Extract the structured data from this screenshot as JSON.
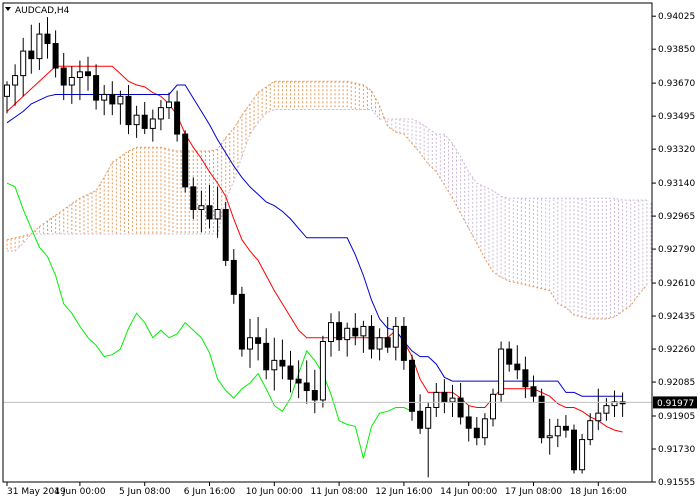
{
  "chart_data": {
    "type": "candlestick",
    "symbol_label": "AUDCAD,H4",
    "current_price": "0.91977",
    "ylim": [
      0.91555,
      0.94095
    ],
    "y_ticks": [
      "0.94025",
      "0.93850",
      "0.93670",
      "0.93495",
      "0.93320",
      "0.93140",
      "0.92965",
      "0.92790",
      "0.92610",
      "0.92435",
      "0.92260",
      "0.92085",
      "0.91905",
      "0.91730",
      "0.91555"
    ],
    "x_ticks": [
      {
        "label": "31 May 2019",
        "index": 0
      },
      {
        "label": "4 Jun 00:00",
        "index": 9
      },
      {
        "label": "5 Jun 08:00",
        "index": 17
      },
      {
        "label": "6 Jun 16:00",
        "index": 25
      },
      {
        "label": "10 Jun 00:00",
        "index": 33
      },
      {
        "label": "11 Jun 08:00",
        "index": 41
      },
      {
        "label": "12 Jun 16:00",
        "index": 49
      },
      {
        "label": "14 Jun 00:00",
        "index": 57
      },
      {
        "label": "17 Jun 08:00",
        "index": 65
      },
      {
        "label": "18 Jun 16:00",
        "index": 73
      }
    ],
    "candles": [
      [
        0.936,
        0.9368,
        0.9351,
        0.9366
      ],
      [
        0.9366,
        0.9377,
        0.9355,
        0.9371
      ],
      [
        0.9371,
        0.9391,
        0.936,
        0.9384
      ],
      [
        0.9384,
        0.9398,
        0.9372,
        0.938
      ],
      [
        0.938,
        0.9399,
        0.9374,
        0.9393
      ],
      [
        0.9393,
        0.9402,
        0.938,
        0.9388
      ],
      [
        0.9388,
        0.9395,
        0.937,
        0.9375
      ],
      [
        0.9375,
        0.9383,
        0.9358,
        0.9366
      ],
      [
        0.9366,
        0.9376,
        0.9356,
        0.937
      ],
      [
        0.937,
        0.9379,
        0.9358,
        0.9373
      ],
      [
        0.9373,
        0.9381,
        0.9363,
        0.9371
      ],
      [
        0.9371,
        0.9377,
        0.9353,
        0.9358
      ],
      [
        0.9358,
        0.9366,
        0.935,
        0.9361
      ],
      [
        0.9361,
        0.9368,
        0.935,
        0.9356
      ],
      [
        0.9356,
        0.9363,
        0.9345,
        0.936
      ],
      [
        0.936,
        0.9366,
        0.934,
        0.9345
      ],
      [
        0.9345,
        0.9355,
        0.9338,
        0.935
      ],
      [
        0.935,
        0.9357,
        0.934,
        0.9343
      ],
      [
        0.9343,
        0.9353,
        0.9336,
        0.9348
      ],
      [
        0.9348,
        0.9358,
        0.9342,
        0.9354
      ],
      [
        0.9354,
        0.9362,
        0.9348,
        0.9357
      ],
      [
        0.9357,
        0.9363,
        0.9336,
        0.934
      ],
      [
        0.934,
        0.9342,
        0.9309,
        0.9312
      ],
      [
        0.9312,
        0.9317,
        0.9295,
        0.93
      ],
      [
        0.93,
        0.931,
        0.9288,
        0.9302
      ],
      [
        0.9302,
        0.9313,
        0.929,
        0.9295
      ],
      [
        0.9295,
        0.9312,
        0.9285,
        0.93
      ],
      [
        0.93,
        0.9304,
        0.927,
        0.9273
      ],
      [
        0.9273,
        0.9279,
        0.925,
        0.9255
      ],
      [
        0.9255,
        0.9259,
        0.9222,
        0.9226
      ],
      [
        0.9226,
        0.9242,
        0.9216,
        0.9232
      ],
      [
        0.9232,
        0.9243,
        0.922,
        0.9229
      ],
      [
        0.9229,
        0.9237,
        0.921,
        0.9215
      ],
      [
        0.9215,
        0.9232,
        0.9204,
        0.922
      ],
      [
        0.922,
        0.9231,
        0.921,
        0.9217
      ],
      [
        0.9217,
        0.9225,
        0.9203,
        0.921
      ],
      [
        0.921,
        0.922,
        0.92,
        0.9208
      ],
      [
        0.9208,
        0.922,
        0.9197,
        0.9204
      ],
      [
        0.9204,
        0.9215,
        0.9192,
        0.9199
      ],
      [
        0.9199,
        0.9233,
        0.9195,
        0.923
      ],
      [
        0.923,
        0.9245,
        0.9222,
        0.924
      ],
      [
        0.924,
        0.9246,
        0.9225,
        0.9231
      ],
      [
        0.9231,
        0.924,
        0.9222,
        0.9237
      ],
      [
        0.9237,
        0.9245,
        0.9228,
        0.9233
      ],
      [
        0.9233,
        0.9241,
        0.9224,
        0.9238
      ],
      [
        0.9238,
        0.9244,
        0.9221,
        0.9226
      ],
      [
        0.9226,
        0.9237,
        0.922,
        0.9232
      ],
      [
        0.9232,
        0.9243,
        0.9224,
        0.9227
      ],
      [
        0.9227,
        0.9243,
        0.922,
        0.9238
      ],
      [
        0.9238,
        0.9243,
        0.9215,
        0.922
      ],
      [
        0.922,
        0.9223,
        0.9188,
        0.9193
      ],
      [
        0.9193,
        0.9202,
        0.9181,
        0.9184
      ],
      [
        0.9184,
        0.9198,
        0.9158,
        0.9195
      ],
      [
        0.9195,
        0.9208,
        0.919,
        0.9203
      ],
      [
        0.9203,
        0.921,
        0.9192,
        0.9198
      ],
      [
        0.9198,
        0.9207,
        0.919,
        0.92
      ],
      [
        0.92,
        0.9208,
        0.9186,
        0.919
      ],
      [
        0.919,
        0.9196,
        0.9177,
        0.9184
      ],
      [
        0.9184,
        0.919,
        0.9175,
        0.9179
      ],
      [
        0.9179,
        0.9192,
        0.9175,
        0.9189
      ],
      [
        0.9189,
        0.9205,
        0.9185,
        0.9202
      ],
      [
        0.9202,
        0.923,
        0.9198,
        0.9226
      ],
      [
        0.9226,
        0.923,
        0.9214,
        0.9218
      ],
      [
        0.9218,
        0.9228,
        0.921,
        0.9215
      ],
      [
        0.9215,
        0.9222,
        0.92,
        0.9206
      ],
      [
        0.9206,
        0.9212,
        0.9198,
        0.9201
      ],
      [
        0.9201,
        0.9205,
        0.9176,
        0.9179
      ],
      [
        0.9179,
        0.9189,
        0.917,
        0.918
      ],
      [
        0.918,
        0.9189,
        0.9174,
        0.9185
      ],
      [
        0.9185,
        0.9191,
        0.9179,
        0.9183
      ],
      [
        0.9183,
        0.9186,
        0.916,
        0.9162
      ],
      [
        0.9162,
        0.9181,
        0.916,
        0.9178
      ],
      [
        0.9178,
        0.9192,
        0.9175,
        0.9188
      ],
      [
        0.9188,
        0.9205,
        0.9183,
        0.9192
      ],
      [
        0.9192,
        0.92,
        0.9188,
        0.9196
      ],
      [
        0.9196,
        0.9204,
        0.919,
        0.9198
      ],
      [
        0.9198,
        0.9203,
        0.919,
        0.9197
      ]
    ],
    "indicators": [
      {
        "name": "tenkan",
        "color": "#ff0000",
        "values": [
          0.9352,
          0.9356,
          0.936,
          0.9364,
          0.9368,
          0.9372,
          0.9376,
          0.9376,
          0.9376,
          0.9376,
          0.9376,
          0.9376,
          0.9376,
          0.9376,
          0.9372,
          0.9368,
          0.9366,
          0.9365,
          0.9362,
          0.936,
          0.9356,
          0.935,
          0.934,
          0.9333,
          0.9327,
          0.932,
          0.9314,
          0.9307,
          0.9295,
          0.9284,
          0.9278,
          0.9273,
          0.9265,
          0.9257,
          0.925,
          0.9243,
          0.9236,
          0.9232,
          0.9232,
          0.9232,
          0.9232,
          0.9232,
          0.9232,
          0.9232,
          0.9232,
          0.9232,
          0.9232,
          0.9232,
          0.9236,
          0.923,
          0.9222,
          0.921,
          0.9203,
          0.9203,
          0.9203,
          0.9203,
          0.92,
          0.9196,
          0.9195,
          0.9195,
          0.92,
          0.9205,
          0.9205,
          0.9205,
          0.9205,
          0.9205,
          0.9203,
          0.9201,
          0.9197,
          0.9195,
          0.9195,
          0.9193,
          0.919,
          0.9188,
          0.9185,
          0.9183,
          0.9182
        ]
      },
      {
        "name": "kijun",
        "color": "#0000cc",
        "values": [
          0.9346,
          0.9349,
          0.9352,
          0.9356,
          0.9358,
          0.936,
          0.9361,
          0.9361,
          0.9361,
          0.9361,
          0.9361,
          0.9361,
          0.9361,
          0.9361,
          0.9361,
          0.9361,
          0.9361,
          0.9361,
          0.9361,
          0.9361,
          0.9361,
          0.9366,
          0.9366,
          0.9359,
          0.9352,
          0.9345,
          0.9337,
          0.933,
          0.9323,
          0.9317,
          0.9312,
          0.9308,
          0.9304,
          0.9302,
          0.9299,
          0.9295,
          0.929,
          0.9285,
          0.9285,
          0.9285,
          0.9285,
          0.9285,
          0.9285,
          0.9276,
          0.9265,
          0.9252,
          0.9242,
          0.9237,
          0.9236,
          0.923,
          0.9225,
          0.9222,
          0.9222,
          0.9218,
          0.9211,
          0.9209,
          0.9209,
          0.9209,
          0.9209,
          0.9209,
          0.9209,
          0.9209,
          0.9209,
          0.9209,
          0.9209,
          0.9209,
          0.9209,
          0.9209,
          0.9209,
          0.9203,
          0.9203,
          0.9201,
          0.9201,
          0.9201,
          0.9201,
          0.9201,
          0.9201
        ]
      },
      {
        "name": "chikou",
        "color": "#00ee00",
        "values": [
          0.9314,
          0.9312,
          0.93,
          0.929,
          0.928,
          0.9275,
          0.9265,
          0.925,
          0.9245,
          0.9238,
          0.9232,
          0.9228,
          0.9222,
          0.9223,
          0.9226,
          0.9237,
          0.9245,
          0.924,
          0.9232,
          0.9236,
          0.9232,
          0.9234,
          0.924,
          0.9236,
          0.9232,
          0.9224,
          0.921,
          0.9204,
          0.92,
          0.9205,
          0.9208,
          0.9213,
          0.9205,
          0.9196,
          0.9193,
          0.92,
          0.9213,
          0.9225,
          0.922,
          0.9213,
          0.9202,
          0.9188,
          0.9186,
          0.9185,
          0.9168,
          0.9185,
          0.9192,
          0.9193,
          0.9195,
          0.9195,
          0.9193
        ]
      }
    ],
    "cloud": {
      "span_a": [
        0.9284,
        0.9285,
        0.9286,
        0.9287,
        0.9291,
        0.9294,
        0.9297,
        0.93,
        0.9303,
        0.9306,
        0.9308,
        0.931,
        0.9317,
        0.9325,
        0.9328,
        0.9331,
        0.9333,
        0.9333,
        0.9333,
        0.9333,
        0.9332,
        0.9331,
        0.9331,
        0.9331,
        0.9331,
        0.9331,
        0.9332,
        0.9338,
        0.9343,
        0.935,
        0.9356,
        0.9362,
        0.9365,
        0.9368,
        0.9368,
        0.9368,
        0.9368,
        0.9368,
        0.9368,
        0.9368,
        0.9368,
        0.9368,
        0.9368,
        0.9367,
        0.9366,
        0.9363,
        0.9355,
        0.9344,
        0.9341,
        0.934,
        0.9335,
        0.933,
        0.9324,
        0.932,
        0.9313,
        0.9306,
        0.9298,
        0.929,
        0.9282,
        0.9274,
        0.9267,
        0.9264,
        0.9262,
        0.9261,
        0.926,
        0.9259,
        0.9258,
        0.9257,
        0.925,
        0.9248,
        0.9244,
        0.9243,
        0.9242,
        0.9242,
        0.9242,
        0.9243,
        0.9246,
        0.9249,
        0.9255,
        0.926,
        0.9264,
        0.9264,
        0.9264,
        0.9264,
        0.9264,
        0.9264,
        0.9264,
        0.9264,
        0.9264,
        0.9264
      ],
      "span_b": [
        0.9278,
        0.9278,
        0.9282,
        0.9287,
        0.9287,
        0.9287,
        0.9287,
        0.9287,
        0.9287,
        0.9287,
        0.9287,
        0.9287,
        0.9287,
        0.9287,
        0.9287,
        0.9287,
        0.9287,
        0.9287,
        0.9287,
        0.9287,
        0.9287,
        0.9287,
        0.9287,
        0.9287,
        0.9287,
        0.9287,
        0.9287,
        0.9305,
        0.9315,
        0.9328,
        0.934,
        0.9346,
        0.9351,
        0.9353,
        0.9353,
        0.9353,
        0.9353,
        0.9353,
        0.9353,
        0.9353,
        0.9353,
        0.9353,
        0.9353,
        0.9353,
        0.9353,
        0.9353,
        0.9348,
        0.9348,
        0.9348,
        0.9348,
        0.9348,
        0.9346,
        0.9343,
        0.934,
        0.934,
        0.9335,
        0.9328,
        0.932,
        0.9314,
        0.9312,
        0.931,
        0.9307,
        0.9306,
        0.9306,
        0.9306,
        0.9306,
        0.9306,
        0.9306,
        0.9306,
        0.9306,
        0.9306,
        0.9306,
        0.9306,
        0.9306,
        0.9306,
        0.9306,
        0.9305,
        0.9305,
        0.9305,
        0.9305,
        0.9303,
        0.9301,
        0.9298,
        0.9296,
        0.9294,
        0.9293,
        0.9291,
        0.929,
        0.9288,
        0.9288
      ]
    },
    "colors": {
      "bull_body": "#ffffff",
      "bear_body": "#000000",
      "candle_outline": "#000000",
      "cloud_up": "#e89a5a",
      "cloud_down": "#c9b9d6",
      "grid": "#c0c0c0",
      "price_label_bg": "#000000"
    }
  }
}
